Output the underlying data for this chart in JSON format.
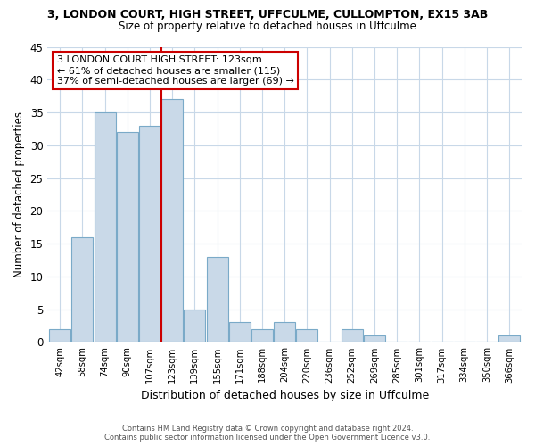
{
  "title": "3, LONDON COURT, HIGH STREET, UFFCULME, CULLOMPTON, EX15 3AB",
  "subtitle": "Size of property relative to detached houses in Uffculme",
  "xlabel": "Distribution of detached houses by size in Uffculme",
  "ylabel": "Number of detached properties",
  "bar_color": "#c9d9e8",
  "bar_edge_color": "#7aaac8",
  "highlight_bar_edge_color": "#cc0000",
  "bins": [
    "42sqm",
    "58sqm",
    "74sqm",
    "90sqm",
    "107sqm",
    "123sqm",
    "139sqm",
    "155sqm",
    "171sqm",
    "188sqm",
    "204sqm",
    "220sqm",
    "236sqm",
    "252sqm",
    "269sqm",
    "285sqm",
    "301sqm",
    "317sqm",
    "334sqm",
    "350sqm",
    "366sqm"
  ],
  "values": [
    2,
    16,
    35,
    32,
    33,
    37,
    5,
    13,
    3,
    2,
    3,
    2,
    0,
    2,
    1,
    0,
    0,
    0,
    0,
    0,
    1
  ],
  "highlight_index": 5,
  "ylim": [
    0,
    45
  ],
  "yticks": [
    0,
    5,
    10,
    15,
    20,
    25,
    30,
    35,
    40,
    45
  ],
  "annotation_title": "3 LONDON COURT HIGH STREET: 123sqm",
  "annotation_line1": "← 61% of detached houses are smaller (115)",
  "annotation_line2": "37% of semi-detached houses are larger (69) →",
  "footer1": "Contains HM Land Registry data © Crown copyright and database right 2024.",
  "footer2": "Contains public sector information licensed under the Open Government Licence v3.0.",
  "background_color": "#ffffff",
  "grid_color": "#c8d8e8"
}
